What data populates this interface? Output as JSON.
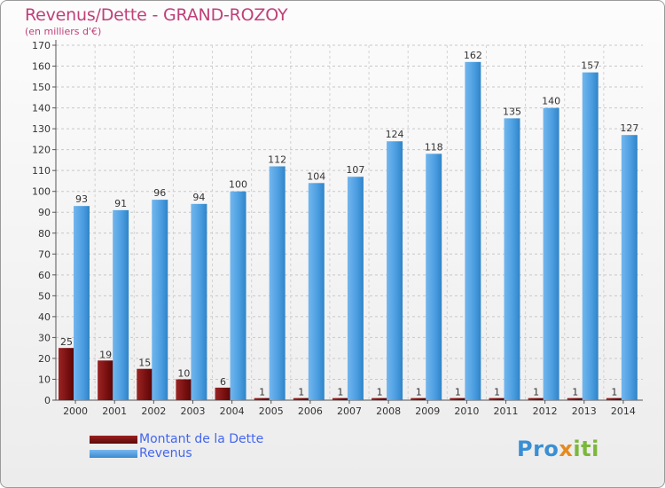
{
  "header": {
    "title": "Revenus/Dette - GRAND-ROZOY",
    "subtitle": "(en milliers d'€)"
  },
  "legend": {
    "items": [
      {
        "label": "Montant de la Dette",
        "color": "#7a1010"
      },
      {
        "label": "Revenus",
        "color": "#4a9fe0"
      }
    ]
  },
  "logo": {
    "text": "Proxiti"
  },
  "chart_data": {
    "type": "bar",
    "categories": [
      "2000",
      "2001",
      "2002",
      "2003",
      "2004",
      "2005",
      "2006",
      "2007",
      "2008",
      "2009",
      "2010",
      "2011",
      "2012",
      "2013",
      "2014"
    ],
    "series": [
      {
        "name": "Montant de la Dette",
        "color": "#7a1010",
        "values": [
          25,
          19,
          15,
          10,
          6,
          1,
          1,
          1,
          1,
          1,
          1,
          1,
          1,
          1,
          1
        ]
      },
      {
        "name": "Revenus",
        "color": "#4a9fe0",
        "values": [
          93,
          91,
          96,
          94,
          100,
          112,
          104,
          107,
          124,
          118,
          162,
          135,
          140,
          157,
          127
        ]
      }
    ],
    "ylim": [
      0,
      170
    ],
    "yticks": [
      0,
      10,
      20,
      30,
      40,
      50,
      60,
      70,
      80,
      90,
      100,
      110,
      120,
      130,
      140,
      150,
      160,
      170
    ],
    "grid": true,
    "legend_position": "bottom-left"
  }
}
